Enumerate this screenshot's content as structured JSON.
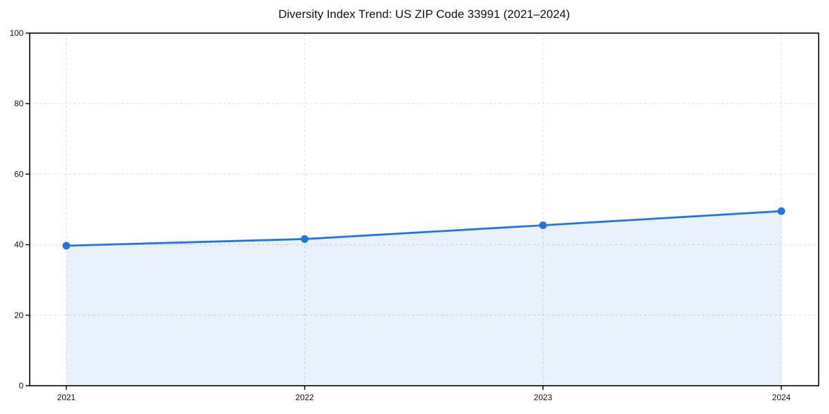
{
  "chart_data": {
    "type": "line",
    "title": "Diversity Index Trend: US ZIP Code 33991 (2021–2024)",
    "categories": [
      "2021",
      "2022",
      "2023",
      "2024"
    ],
    "series": [
      {
        "name": "Diversity Index",
        "values": [
          39.7,
          41.6,
          45.5,
          49.5
        ]
      }
    ],
    "xlabel": "",
    "ylabel": "",
    "ylim": [
      0,
      100
    ],
    "yticks": [
      0,
      20,
      40,
      60,
      80,
      100
    ],
    "grid": "dashed, both axes, light gray",
    "legend": "none",
    "marker": "circle",
    "area_fill": true,
    "colors": {
      "line": "#2273e6",
      "marker": "#2273e6",
      "area_fill_opacity": 0.1,
      "grid": "#dedede",
      "spine": "#000000",
      "tick_text": "#111111",
      "background": "#ffffff"
    }
  }
}
